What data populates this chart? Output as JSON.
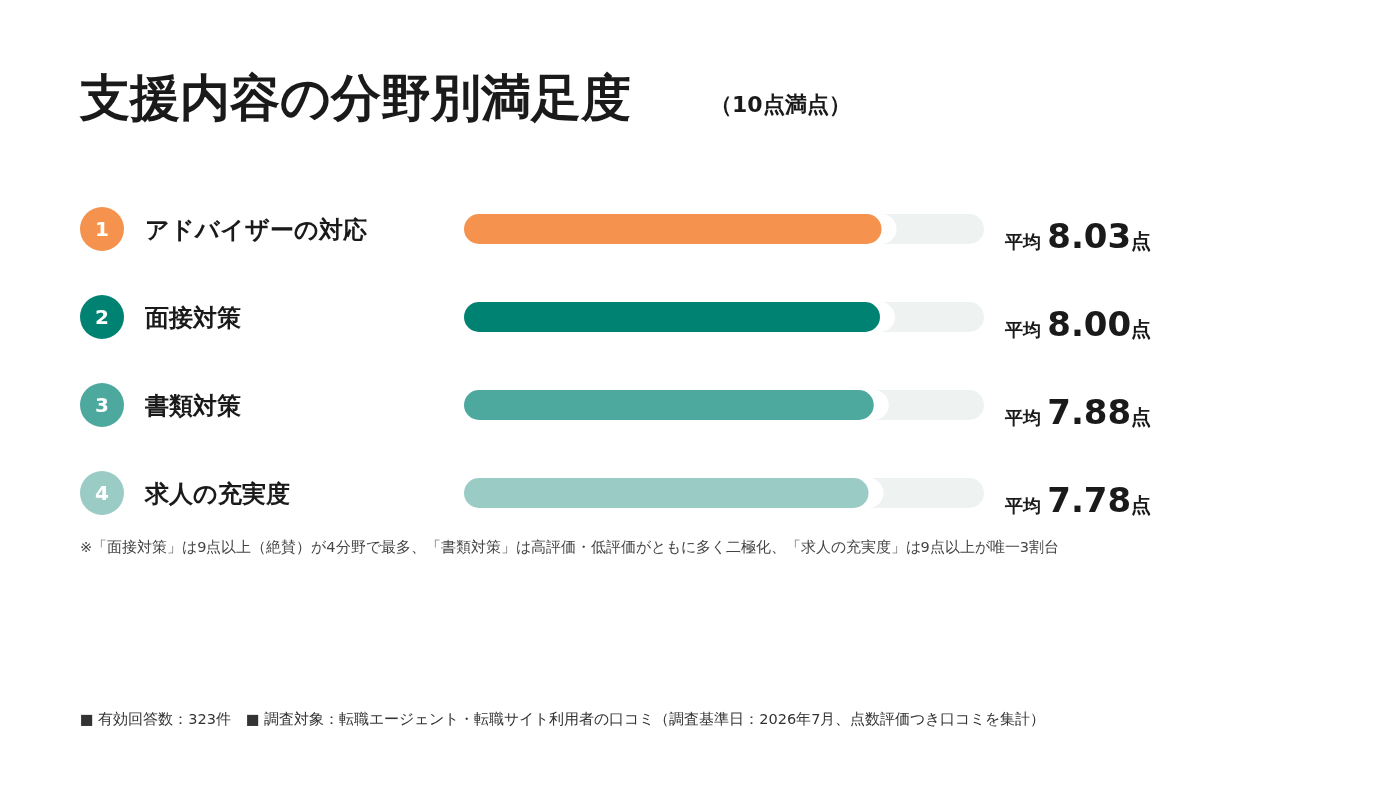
{
  "chart_data": {
    "type": "bar",
    "orientation": "horizontal",
    "title": "支援内容の分野別満足度",
    "subtitle": "（10点満点）",
    "categories": [
      "アドバイザーの対応",
      "面接対策",
      "書類対策",
      "求人の充実度"
    ],
    "values": [
      8.03,
      8.0,
      7.88,
      7.78
    ],
    "colors": [
      "#f5924d",
      "#008272",
      "#4da89d",
      "#9acbc5"
    ],
    "value_labels": [
      "平均 8.03点",
      "平均 8.00点",
      "平均 7.88点",
      "平均 7.78点"
    ],
    "xlim": [
      0,
      10
    ],
    "tick_labels": false,
    "annotations": [
      "1",
      "2",
      "3",
      "4",
      "※「面接対策」は9点以上（絶賛）が4分野で最多、「書類対策」は高評価・低評価がともに多く二極化、「求人の充実度」は9点以上が唯一3割台",
      "■ 有効回答数：323件　■ 調査対象：転職エージェント・転職サイト利用者の口コミ（調査基準日：2026年7月、点数評価つき口コミを集計）"
    ]
  }
}
